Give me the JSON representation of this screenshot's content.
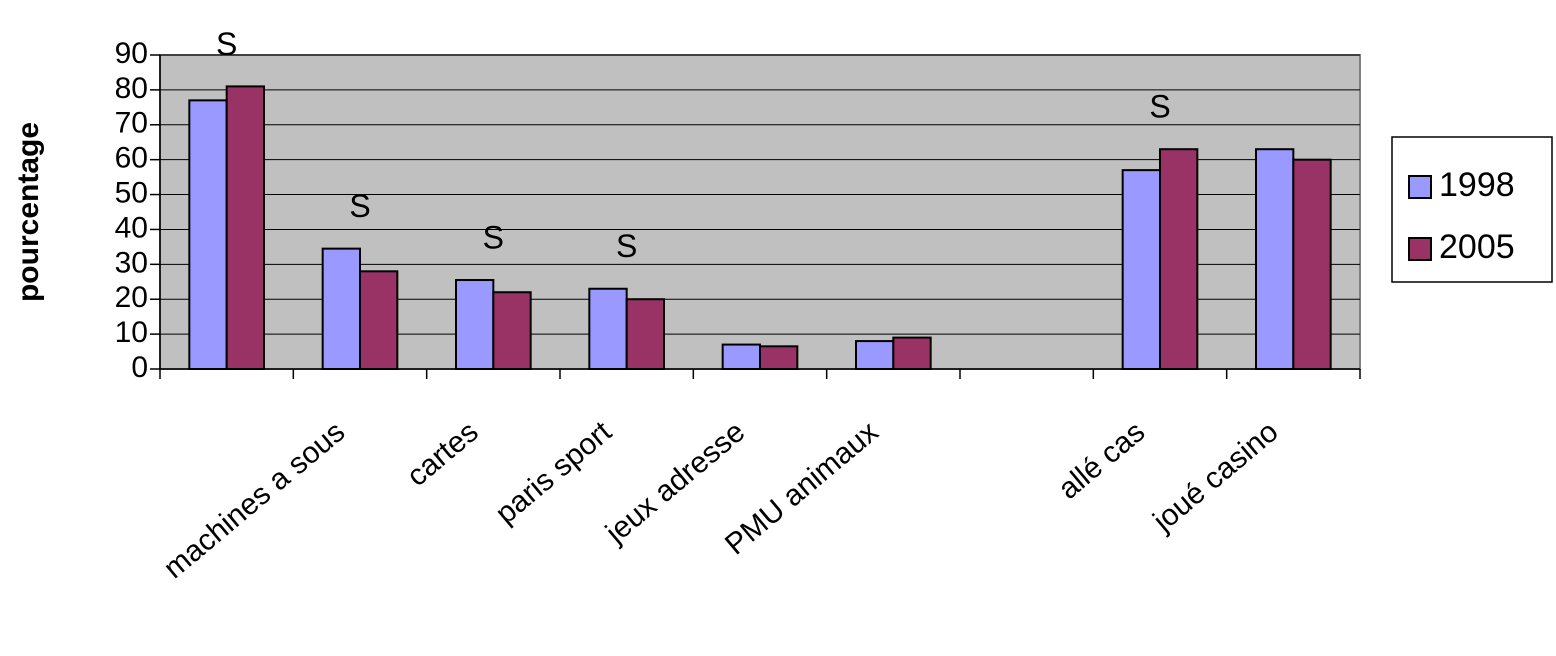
{
  "chart_data": {
    "type": "bar",
    "y_label": "pourcentage",
    "categories": [
      null,
      "machines a sous",
      "cartes",
      "paris sport",
      "jeux adresse",
      "PMU animaux",
      null,
      "allé cas",
      "joué casino"
    ],
    "series": [
      {
        "name": "1998",
        "color": "#9999ff",
        "values": [
          77,
          34.5,
          25.5,
          23,
          7,
          8,
          null,
          57,
          63
        ]
      },
      {
        "name": "2005",
        "color": "#993366",
        "values": [
          81,
          28,
          22,
          20,
          6.5,
          9,
          null,
          63,
          60
        ]
      }
    ],
    "annotations": [
      {
        "text": "S",
        "category": 0
      },
      {
        "text": "S",
        "category": 1
      },
      {
        "text": "S",
        "category": 2
      },
      {
        "text": "S",
        "category": 3
      },
      {
        "text": "S",
        "category": 7
      }
    ],
    "ylim": [
      0,
      90
    ],
    "yticks": [
      0,
      10,
      20,
      30,
      40,
      50,
      60,
      70,
      80,
      90
    ],
    "grid": true,
    "plot_background": "#c0c0c0",
    "legend": "right"
  }
}
